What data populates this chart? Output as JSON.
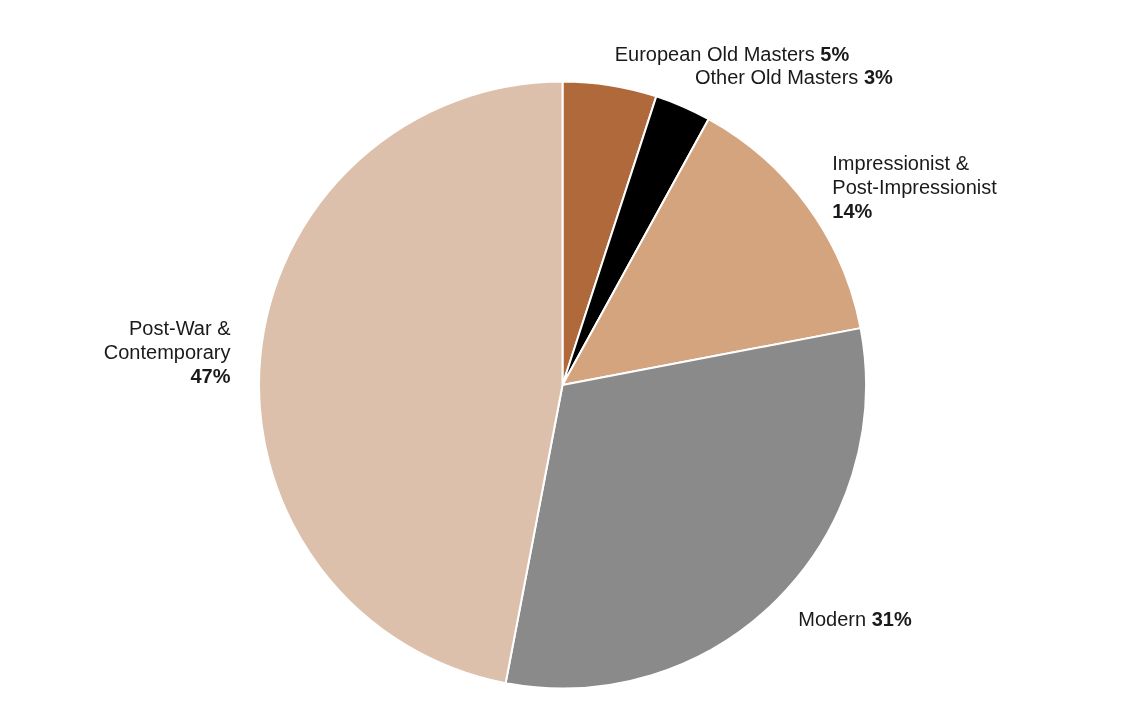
{
  "chart_data": {
    "type": "pie",
    "categories": [
      "European Old Masters",
      "Other Old Masters",
      "Impressionist & Post-Impressionist",
      "Modern",
      "Post-War & Contemporary"
    ],
    "values": [
      5,
      3,
      14,
      31,
      47
    ],
    "colors": [
      "#b0693a",
      "#000000",
      "#d4a47f",
      "#8a8a8a",
      "#dcc0ab"
    ],
    "value_labels": [
      "5%",
      "3%",
      "14%",
      "31%",
      "47%"
    ]
  }
}
